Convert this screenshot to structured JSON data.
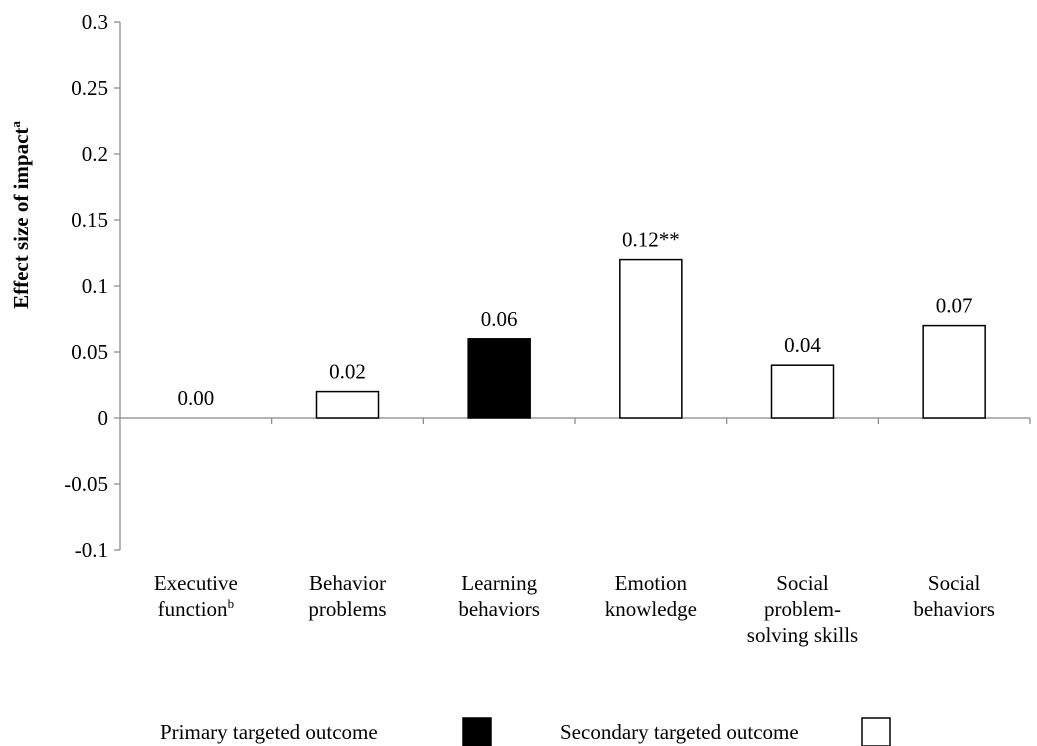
{
  "chart_data": {
    "type": "bar",
    "ylabel": "Effect size of impact",
    "ylabel_superscript": "a",
    "ylim": [
      -0.1,
      0.3
    ],
    "yticks": [
      "-0.1",
      "-0.05",
      "0",
      "0.05",
      "0.1",
      "0.15",
      "0.2",
      "0.25",
      "0.3"
    ],
    "ytick_values": [
      -0.1,
      -0.05,
      0,
      0.05,
      0.1,
      0.15,
      0.2,
      0.25,
      0.3
    ],
    "grid": false,
    "categories": [
      {
        "lines": [
          "Executive",
          "function"
        ],
        "superscript": "b"
      },
      {
        "lines": [
          "Behavior",
          "problems"
        ],
        "superscript": ""
      },
      {
        "lines": [
          "Learning",
          "behaviors"
        ],
        "superscript": ""
      },
      {
        "lines": [
          "Emotion",
          "knowledge"
        ],
        "superscript": ""
      },
      {
        "lines": [
          "Social",
          "problem-",
          "solving skills"
        ],
        "superscript": ""
      },
      {
        "lines": [
          "Social",
          "behaviors"
        ],
        "superscript": ""
      }
    ],
    "values": [
      0.0,
      0.02,
      0.06,
      0.12,
      0.04,
      0.07
    ],
    "data_labels": [
      "0.00",
      "0.02",
      "0.06",
      "0.12**",
      "0.04",
      "0.07"
    ],
    "bar_kind": [
      "secondary",
      "secondary",
      "primary",
      "secondary",
      "secondary",
      "secondary"
    ],
    "legend": {
      "placement": "bottom",
      "items": [
        {
          "kind": "primary",
          "label": "Primary targeted outcome"
        },
        {
          "kind": "secondary",
          "label": "Secondary targeted outcome"
        }
      ]
    },
    "colors": {
      "primary": "#000000",
      "secondary": "#ffffff",
      "stroke": "#000000",
      "axis": "#868686"
    }
  }
}
